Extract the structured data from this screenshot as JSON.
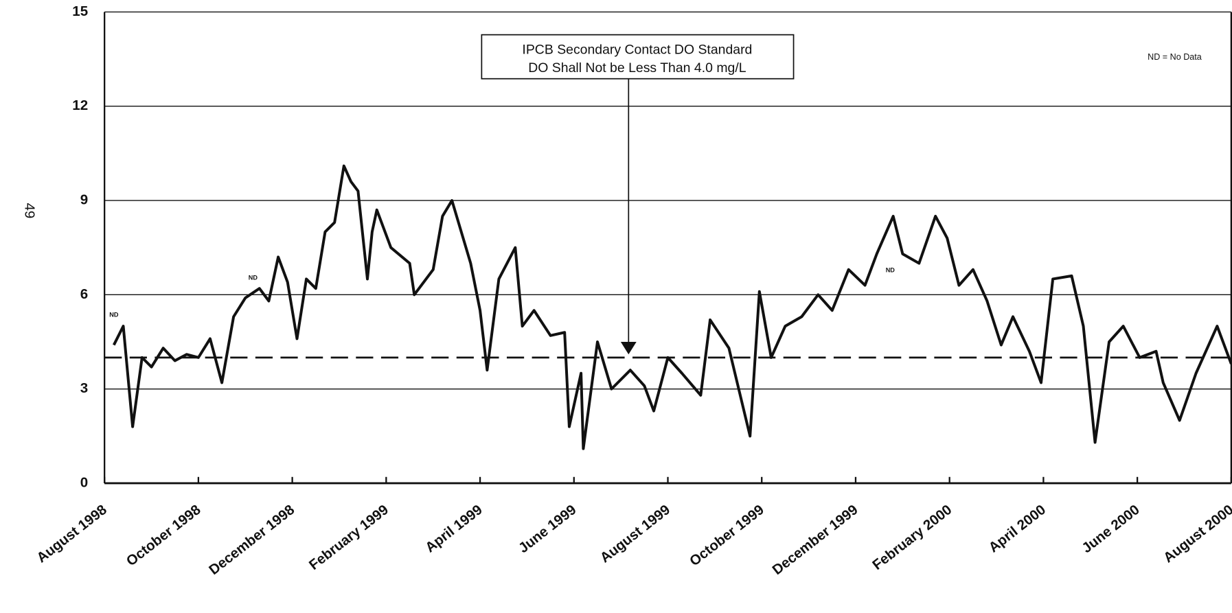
{
  "chart_data": {
    "type": "line",
    "page_number": "49",
    "annotation": [
      "IPCB Secondary Contact DO Standard",
      "DO Shall Not be Less Than 4.0 mg/L"
    ],
    "note": "ND = No Data",
    "nd_labels": [
      "ND",
      "ND",
      "ND"
    ],
    "threshold": 4.0,
    "xlim": [
      0,
      24
    ],
    "xticks": [
      {
        "value": 0,
        "label": "August 1998"
      },
      {
        "value": 2,
        "label": "October 1998"
      },
      {
        "value": 4,
        "label": "December 1998"
      },
      {
        "value": 6,
        "label": "February 1999"
      },
      {
        "value": 8,
        "label": "April 1999"
      },
      {
        "value": 10,
        "label": "June 1999"
      },
      {
        "value": 12,
        "label": "August 1999"
      },
      {
        "value": 14,
        "label": "October 1999"
      },
      {
        "value": 16,
        "label": "December 1999"
      },
      {
        "value": 18,
        "label": "February 2000"
      },
      {
        "value": 20,
        "label": "April 2000"
      },
      {
        "value": 22,
        "label": "June 2000"
      },
      {
        "value": 24,
        "label": "August 2000"
      }
    ],
    "ylim": [
      0,
      15
    ],
    "yticks": [
      0,
      3,
      6,
      9,
      12,
      15
    ],
    "grid": true,
    "series": [
      {
        "color": "#111111",
        "x": [
          0.2,
          0.4,
          0.6,
          0.8,
          1.0,
          1.25,
          1.5,
          1.75,
          2.0,
          2.25,
          2.5,
          2.75,
          3.0,
          3.3,
          3.5,
          3.7,
          3.9,
          4.1,
          4.3,
          4.5,
          4.7,
          4.9,
          5.1,
          5.25,
          5.4,
          5.6,
          5.7,
          5.8,
          6.1,
          6.5,
          6.6,
          7.0,
          7.2,
          7.4,
          7.6,
          7.8,
          8.0,
          8.15,
          8.4,
          8.75,
          8.9,
          9.15,
          9.5,
          9.8,
          9.9,
          10.15,
          10.2,
          10.5,
          10.8,
          11.2,
          11.5,
          11.7,
          12.0,
          12.3,
          12.7,
          12.9,
          13.3,
          13.75,
          13.95,
          14.2,
          14.5,
          14.85,
          15.2,
          15.5,
          15.85,
          16.2,
          16.45,
          16.8,
          17.0,
          17.35,
          17.7,
          17.95,
          18.2,
          18.5,
          18.8,
          19.1,
          19.35,
          19.7,
          19.95,
          20.2,
          20.6,
          20.85,
          21.1,
          21.4,
          21.7,
          22.05,
          22.4,
          22.55,
          22.9,
          23.25,
          23.7,
          24.0
        ],
        "values": [
          4.4,
          5.0,
          1.8,
          4.0,
          3.7,
          4.3,
          3.9,
          4.1,
          4.0,
          4.6,
          3.2,
          5.3,
          5.9,
          6.2,
          5.8,
          7.2,
          6.4,
          4.6,
          6.5,
          6.2,
          8.0,
          8.3,
          10.1,
          9.6,
          9.3,
          6.5,
          8.0,
          8.7,
          7.5,
          7.0,
          6.0,
          6.8,
          8.5,
          9.0,
          8.0,
          7.0,
          5.5,
          3.6,
          6.5,
          7.5,
          5.0,
          5.5,
          4.7,
          4.8,
          1.8,
          3.5,
          1.1,
          4.5,
          3.0,
          3.6,
          3.1,
          2.3,
          4.0,
          3.5,
          2.8,
          5.2,
          4.3,
          1.5,
          6.1,
          4.0,
          5.0,
          5.3,
          6.0,
          5.5,
          6.8,
          6.3,
          7.3,
          8.5,
          7.3,
          7.0,
          8.5,
          7.8,
          6.3,
          6.8,
          5.8,
          4.4,
          5.3,
          4.2,
          3.2,
          6.5,
          6.6,
          5.0,
          1.3,
          4.5,
          5.0,
          4.0,
          4.2,
          3.2,
          2.0,
          3.5,
          5.0,
          3.8
        ]
      }
    ]
  }
}
